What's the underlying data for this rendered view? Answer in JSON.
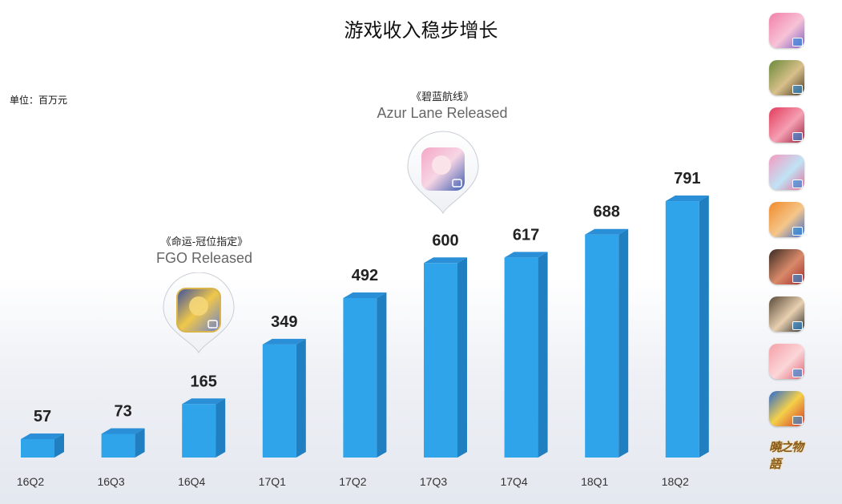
{
  "title": "游戏收入稳步增长",
  "unit_label": "单位：百万元",
  "callouts": {
    "fgo": {
      "cn": "《命运-冠位指定》",
      "en": "FGO Released",
      "icon": "fgo-game-icon"
    },
    "azur": {
      "cn": "《碧蓝航线》",
      "en": "Azur Lane Released",
      "icon": "azur-lane-game-icon"
    }
  },
  "sidebar_icons": [
    "game-icon-1",
    "game-icon-2",
    "game-icon-3",
    "game-icon-4",
    "game-icon-5",
    "game-icon-6",
    "game-icon-7",
    "game-icon-8",
    "one-piece-game-icon"
  ],
  "sidebar_logo": "曉之物語",
  "colors": {
    "bar_front": "#2fa4ea",
    "bar_side": "#1f7fc0",
    "bar_top": "#2a8fd6"
  },
  "chart_data": {
    "type": "bar",
    "categories": [
      "16Q2",
      "16Q3",
      "16Q4",
      "17Q1",
      "17Q2",
      "17Q3",
      "17Q4",
      "18Q1",
      "18Q2"
    ],
    "values": [
      57,
      73,
      165,
      349,
      492,
      600,
      617,
      688,
      791
    ],
    "title": "游戏收入稳步增长",
    "ylabel": "单位：百万元",
    "grid": false,
    "value_labels": [
      "57",
      "73",
      "165",
      "349",
      "492",
      "600",
      "617",
      "688",
      "791"
    ]
  }
}
